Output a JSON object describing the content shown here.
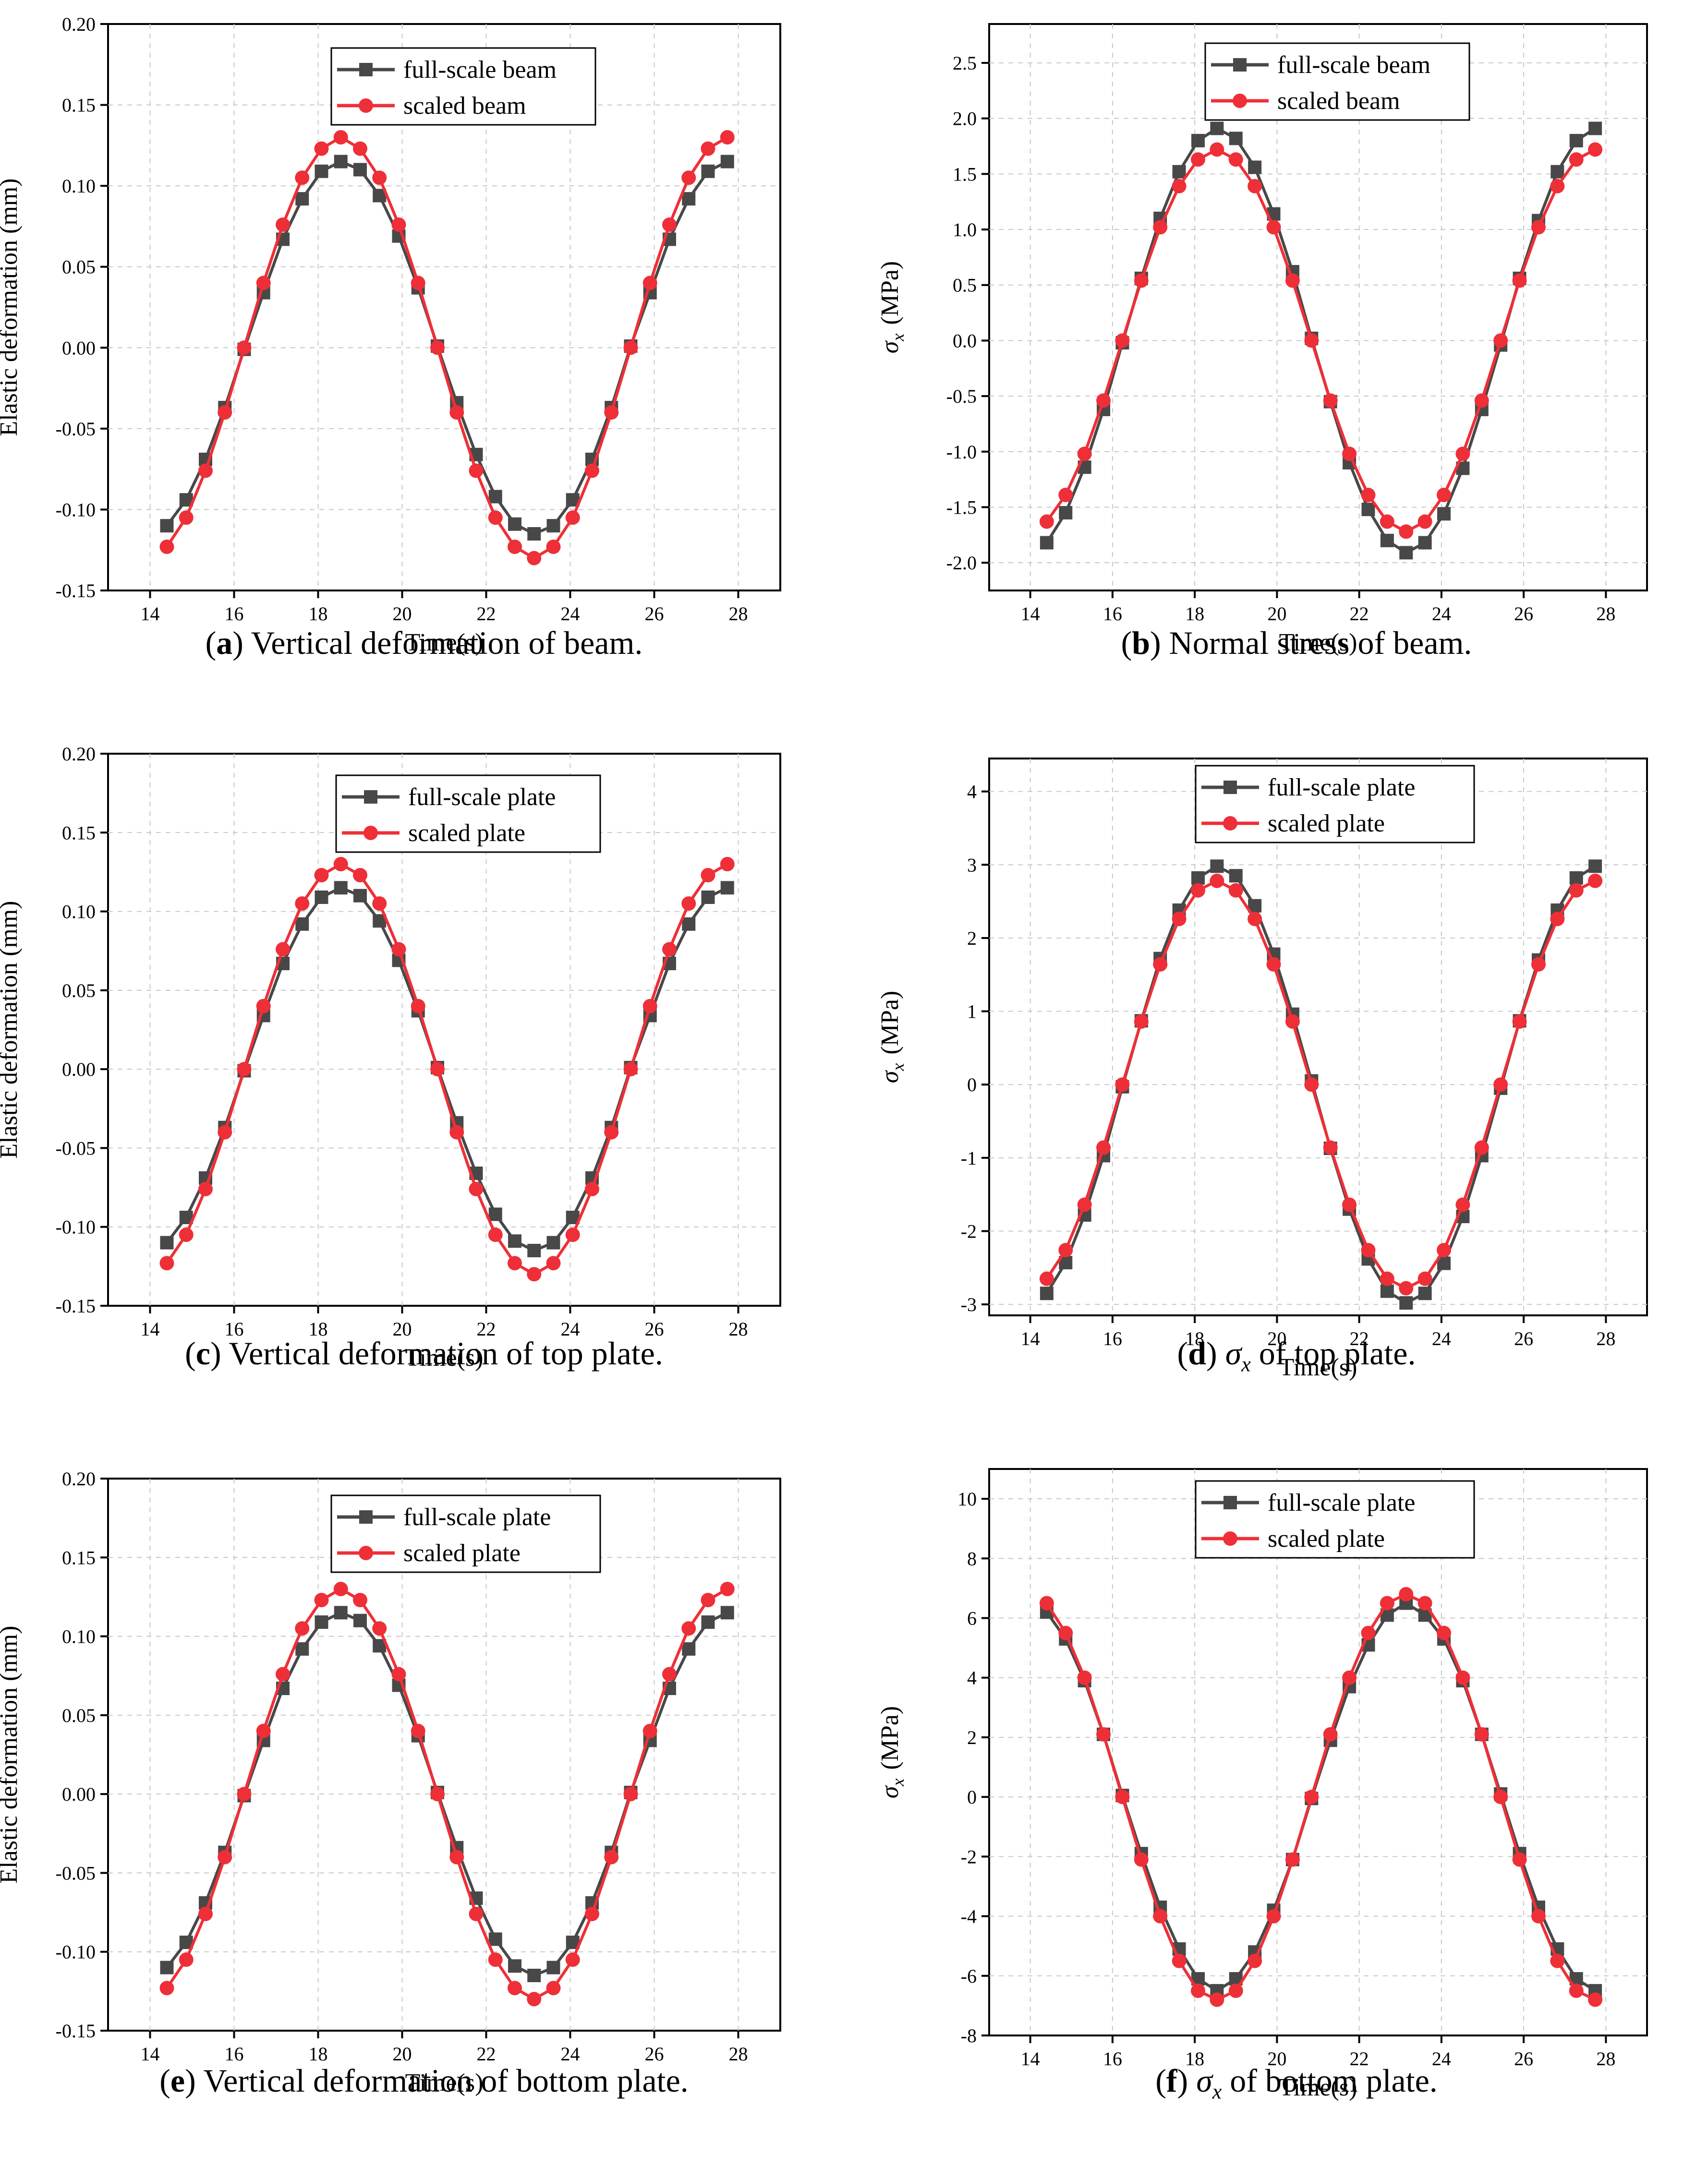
{
  "colors": {
    "full": "#484848",
    "scaled": "#ee2f37"
  },
  "time": [
    14.4,
    14.86,
    15.32,
    15.78,
    16.24,
    16.7,
    17.16,
    17.62,
    18.08,
    18.54,
    19.0,
    19.46,
    19.92,
    20.38,
    20.84,
    21.3,
    21.76,
    22.22,
    22.68,
    23.14,
    23.6,
    24.06,
    24.52,
    24.98,
    25.44,
    25.9,
    26.36,
    26.82,
    27.28,
    27.74
  ],
  "panels": [
    {
      "id": "a",
      "caption_letter": "a",
      "caption_text": " Vertical deformation of beam.",
      "chart_data": {
        "type": "line",
        "xlabel": "Time(s)",
        "ylabel": "Elastic deformation (mm)",
        "xlim": [
          13.0,
          29.0
        ],
        "ylim": [
          -0.15,
          0.2
        ],
        "xticks": [
          14,
          16,
          18,
          20,
          22,
          24,
          26,
          28
        ],
        "xtick_labels": [
          "14",
          "16",
          "18",
          "20",
          "22",
          "24",
          "26",
          "28"
        ],
        "yticks": [
          -0.15,
          -0.1,
          -0.05,
          0.0,
          0.05,
          0.1,
          0.15,
          0.2
        ],
        "ytick_labels": [
          "-0.15",
          "-0.10",
          "-0.05",
          "0.00",
          "0.05",
          "0.10",
          "0.15",
          "0.20"
        ],
        "series": [
          {
            "name": "full-scale beam",
            "marker": "square",
            "values": [
              -0.11,
              -0.094,
              -0.069,
              -0.037,
              -0.001,
              0.034,
              0.067,
              0.092,
              0.109,
              0.115,
              0.11,
              0.094,
              0.069,
              0.037,
              0.001,
              -0.034,
              -0.066,
              -0.092,
              -0.109,
              -0.115,
              -0.11,
              -0.094,
              -0.069,
              -0.037,
              0.001,
              0.034,
              0.067,
              0.092,
              0.109,
              0.115
            ]
          },
          {
            "name": "scaled beam",
            "marker": "circle",
            "values": [
              -0.123,
              -0.105,
              -0.076,
              -0.04,
              0.0,
              0.04,
              0.076,
              0.105,
              0.123,
              0.13,
              0.123,
              0.105,
              0.076,
              0.04,
              0.0,
              -0.04,
              -0.076,
              -0.105,
              -0.123,
              -0.13,
              -0.123,
              -0.105,
              -0.076,
              -0.04,
              0.0,
              0.04,
              0.076,
              0.105,
              0.123,
              0.13
            ]
          }
        ]
      }
    },
    {
      "id": "b",
      "caption_letter": "b",
      "caption_text": " Normal stress of beam.",
      "chart_data": {
        "type": "line",
        "xlabel": "Time(s)",
        "ylabel_sym": "σ",
        "ylabel_sub": "x",
        "ylabel_unit": "(MPa)",
        "xlim": [
          13.0,
          29.0
        ],
        "ylim": [
          -2.25,
          2.85
        ],
        "xticks": [
          14,
          16,
          18,
          20,
          22,
          24,
          26,
          28
        ],
        "xtick_labels": [
          "14",
          "16",
          "18",
          "20",
          "22",
          "24",
          "26",
          "28"
        ],
        "yticks": [
          -2.0,
          -1.5,
          -1.0,
          -0.5,
          0.0,
          0.5,
          1.0,
          1.5,
          2.0,
          2.5
        ],
        "ytick_labels": [
          "-2.0",
          "-1.5",
          "-1.0",
          "-0.5",
          "0.0",
          "0.5",
          "1.0",
          "1.5",
          "2.0",
          "2.5"
        ],
        "series": [
          {
            "name": "full-scale beam",
            "marker": "square",
            "values": [
              -1.82,
              -1.55,
              -1.14,
              -0.62,
              -0.02,
              0.56,
              1.1,
              1.52,
              1.8,
              1.91,
              1.82,
              1.56,
              1.14,
              0.62,
              0.02,
              -0.55,
              -1.1,
              -1.52,
              -1.8,
              -1.91,
              -1.82,
              -1.56,
              -1.15,
              -0.62,
              -0.04,
              0.56,
              1.08,
              1.52,
              1.8,
              1.91
            ]
          },
          {
            "name": "scaled beam",
            "marker": "circle",
            "values": [
              -1.63,
              -1.39,
              -1.02,
              -0.54,
              0.0,
              0.54,
              1.02,
              1.39,
              1.63,
              1.72,
              1.63,
              1.39,
              1.02,
              0.54,
              0.0,
              -0.54,
              -1.02,
              -1.39,
              -1.63,
              -1.72,
              -1.63,
              -1.39,
              -1.02,
              -0.54,
              0.0,
              0.54,
              1.02,
              1.39,
              1.63,
              1.72
            ]
          }
        ]
      }
    },
    {
      "id": "c",
      "caption_letter": "c",
      "caption_text": " Vertical deformation of top plate.",
      "chart_data": {
        "type": "line",
        "xlabel": "Time(s)",
        "ylabel": "Elastic deformation (mm)",
        "xlim": [
          13.0,
          29.0
        ],
        "ylim": [
          -0.15,
          0.2
        ],
        "xticks": [
          14,
          16,
          18,
          20,
          22,
          24,
          26,
          28
        ],
        "xtick_labels": [
          "14",
          "16",
          "18",
          "20",
          "22",
          "24",
          "26",
          "28"
        ],
        "yticks": [
          -0.15,
          -0.1,
          -0.05,
          0.0,
          0.05,
          0.1,
          0.15,
          0.2
        ],
        "ytick_labels": [
          "-0.15",
          "-0.10",
          "-0.05",
          "0.00",
          "0.05",
          "0.10",
          "0.15",
          "0.20"
        ],
        "series": [
          {
            "name": "full-scale plate",
            "marker": "square",
            "values": [
              -0.11,
              -0.094,
              -0.069,
              -0.037,
              -0.001,
              0.034,
              0.067,
              0.092,
              0.109,
              0.115,
              0.11,
              0.094,
              0.069,
              0.037,
              0.001,
              -0.034,
              -0.066,
              -0.092,
              -0.109,
              -0.115,
              -0.11,
              -0.094,
              -0.069,
              -0.037,
              0.001,
              0.034,
              0.067,
              0.092,
              0.109,
              0.115
            ]
          },
          {
            "name": "scaled plate",
            "marker": "circle",
            "values": [
              -0.123,
              -0.105,
              -0.076,
              -0.04,
              0.0,
              0.04,
              0.076,
              0.105,
              0.123,
              0.13,
              0.123,
              0.105,
              0.076,
              0.04,
              0.0,
              -0.04,
              -0.076,
              -0.105,
              -0.123,
              -0.13,
              -0.123,
              -0.105,
              -0.076,
              -0.04,
              0.0,
              0.04,
              0.076,
              0.105,
              0.123,
              0.13
            ]
          }
        ]
      }
    },
    {
      "id": "d",
      "caption_letter": "d",
      "caption_pre": " ",
      "caption_sym": "σ",
      "caption_sub": "x",
      "caption_text": " of top plate.",
      "chart_data": {
        "type": "line",
        "xlabel": "Time(s)",
        "ylabel_sym": "σ",
        "ylabel_sub": "x",
        "ylabel_unit": "(MPa)",
        "xlim": [
          13.0,
          29.0
        ],
        "ylim": [
          -3.15,
          4.45
        ],
        "xticks": [
          14,
          16,
          18,
          20,
          22,
          24,
          26,
          28
        ],
        "xtick_labels": [
          "14",
          "16",
          "18",
          "20",
          "22",
          "24",
          "26",
          "28"
        ],
        "yticks": [
          -3,
          -2,
          -1,
          0,
          1,
          2,
          3,
          4
        ],
        "ytick_labels": [
          "-3",
          "-2",
          "-1",
          "0",
          "1",
          "2",
          "3",
          "4"
        ],
        "series": [
          {
            "name": "full-scale plate",
            "marker": "square",
            "values": [
              -2.85,
              -2.43,
              -1.78,
              -0.97,
              -0.03,
              0.87,
              1.72,
              2.38,
              2.82,
              2.98,
              2.85,
              2.44,
              1.78,
              0.96,
              0.05,
              -0.87,
              -1.7,
              -2.38,
              -2.82,
              -2.98,
              -2.85,
              -2.44,
              -1.8,
              -0.97,
              -0.05,
              0.87,
              1.7,
              2.38,
              2.82,
              2.98
            ]
          },
          {
            "name": "scaled plate",
            "marker": "circle",
            "values": [
              -2.65,
              -2.26,
              -1.64,
              -0.86,
              0.0,
              0.86,
              1.64,
              2.26,
              2.65,
              2.78,
              2.65,
              2.26,
              1.64,
              0.86,
              0.0,
              -0.86,
              -1.64,
              -2.26,
              -2.65,
              -2.78,
              -2.65,
              -2.26,
              -1.64,
              -0.86,
              0.0,
              0.86,
              1.64,
              2.26,
              2.65,
              2.78
            ]
          }
        ]
      }
    },
    {
      "id": "e",
      "caption_letter": "e",
      "caption_text": " Vertical deformation of bottom plate.",
      "chart_data": {
        "type": "line",
        "xlabel": "Time(s)",
        "ylabel": "Elastic deformation (mm)",
        "xlim": [
          13.0,
          29.0
        ],
        "ylim": [
          -0.15,
          0.2
        ],
        "xticks": [
          14,
          16,
          18,
          20,
          22,
          24,
          26,
          28
        ],
        "xtick_labels": [
          "14",
          "16",
          "18",
          "20",
          "22",
          "24",
          "26",
          "28"
        ],
        "yticks": [
          -0.15,
          -0.1,
          -0.05,
          0.0,
          0.05,
          0.1,
          0.15,
          0.2
        ],
        "ytick_labels": [
          "-0.15",
          "-0.10",
          "-0.05",
          "0.00",
          "0.05",
          "0.10",
          "0.15",
          "0.20"
        ],
        "series": [
          {
            "name": "full-scale plate",
            "marker": "square",
            "values": [
              -0.11,
              -0.094,
              -0.069,
              -0.037,
              -0.001,
              0.034,
              0.067,
              0.092,
              0.109,
              0.115,
              0.11,
              0.094,
              0.069,
              0.037,
              0.001,
              -0.034,
              -0.066,
              -0.092,
              -0.109,
              -0.115,
              -0.11,
              -0.094,
              -0.069,
              -0.037,
              0.001,
              0.034,
              0.067,
              0.092,
              0.109,
              0.115
            ]
          },
          {
            "name": "scaled plate",
            "marker": "circle",
            "values": [
              -0.123,
              -0.105,
              -0.076,
              -0.04,
              0.0,
              0.04,
              0.076,
              0.105,
              0.123,
              0.13,
              0.123,
              0.105,
              0.076,
              0.04,
              0.0,
              -0.04,
              -0.076,
              -0.105,
              -0.123,
              -0.13,
              -0.123,
              -0.105,
              -0.076,
              -0.04,
              0.0,
              0.04,
              0.076,
              0.105,
              0.123,
              0.13
            ]
          }
        ]
      }
    },
    {
      "id": "f",
      "caption_letter": "f",
      "caption_pre": " ",
      "caption_sym": "σ",
      "caption_sub": "x",
      "caption_text": " of bottom plate.",
      "chart_data": {
        "type": "line",
        "xlabel": "Time(s)",
        "ylabel_sym": "σ",
        "ylabel_sub": "x",
        "ylabel_unit": "(MPa)",
        "xlim": [
          13.0,
          29.0
        ],
        "ylim": [
          -8.0,
          11.0
        ],
        "xticks": [
          14,
          16,
          18,
          20,
          22,
          24,
          26,
          28
        ],
        "xtick_labels": [
          "14",
          "16",
          "18",
          "20",
          "22",
          "24",
          "26",
          "28"
        ],
        "yticks": [
          -8,
          -6,
          -4,
          -2,
          0,
          2,
          4,
          6,
          8,
          10
        ],
        "ytick_labels": [
          "-8",
          "-6",
          "-4",
          "-2",
          "0",
          "2",
          "4",
          "6",
          "8",
          "10"
        ],
        "series": [
          {
            "name": "full-scale plate",
            "marker": "square",
            "values": [
              6.2,
              5.3,
              3.9,
              2.1,
              0.05,
              -1.9,
              -3.7,
              -5.1,
              -6.1,
              -6.5,
              -6.1,
              -5.2,
              -3.8,
              -2.1,
              -0.05,
              1.9,
              3.7,
              5.1,
              6.1,
              6.5,
              6.1,
              5.3,
              3.9,
              2.1,
              0.1,
              -1.9,
              -3.7,
              -5.1,
              -6.1,
              -6.5
            ]
          },
          {
            "name": "scaled plate",
            "marker": "circle",
            "values": [
              6.5,
              5.5,
              4.0,
              2.1,
              0.0,
              -2.1,
              -4.0,
              -5.5,
              -6.5,
              -6.8,
              -6.5,
              -5.5,
              -4.0,
              -2.1,
              0.0,
              2.1,
              4.0,
              5.5,
              6.5,
              6.8,
              6.5,
              5.5,
              4.0,
              2.1,
              0.0,
              -2.1,
              -4.0,
              -5.5,
              -6.5,
              -6.8
            ]
          }
        ]
      }
    }
  ]
}
